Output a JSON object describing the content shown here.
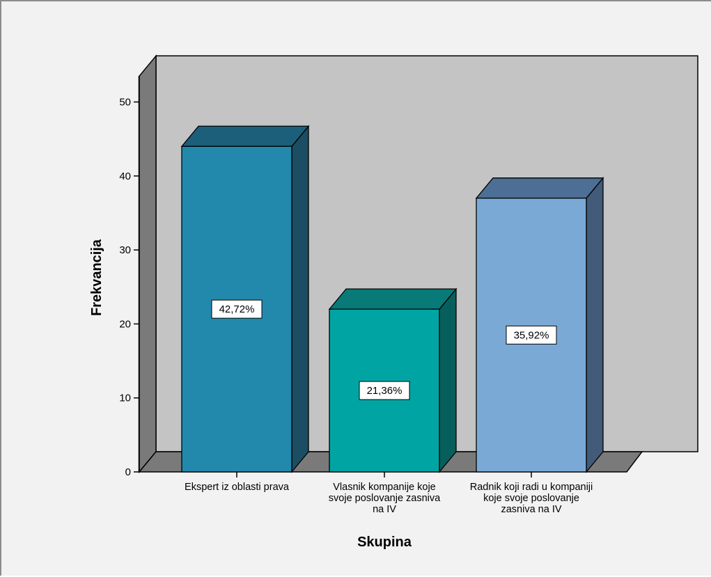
{
  "chart_data": {
    "type": "bar",
    "style": "3d",
    "xlabel": "Skupina",
    "ylabel": "Frekvancija",
    "ylim": [
      0,
      50
    ],
    "yticks": [
      0,
      10,
      20,
      30,
      40,
      50
    ],
    "grid": false,
    "legend": "none",
    "categories": [
      [
        "Ekspert iz oblasti prava"
      ],
      [
        "Vlasnik kompanije koje",
        "svoje poslovanje zasniva",
        "na IV"
      ],
      [
        "Radnik koji radi u kompaniji",
        "koje svoje poslovanje",
        "zasniva na IV"
      ]
    ],
    "values": [
      44,
      22,
      37
    ],
    "data_labels": [
      "42,72%",
      "21,36%",
      "35,92%"
    ],
    "colors": {
      "bar_fronts": [
        "#2389ac",
        "#00a5a3",
        "#7ba9d6"
      ],
      "bar_tops": [
        "#1c5f7a",
        "#087a77",
        "#4d6f95"
      ],
      "bar_sides": [
        "#1b4e63",
        "#065f5d",
        "#415b78"
      ],
      "back_wall": "#c4c4c4",
      "side_wall": "#7a7a7a",
      "floor": "#7a7a7a",
      "frame_background": "#f2f2f2"
    }
  }
}
